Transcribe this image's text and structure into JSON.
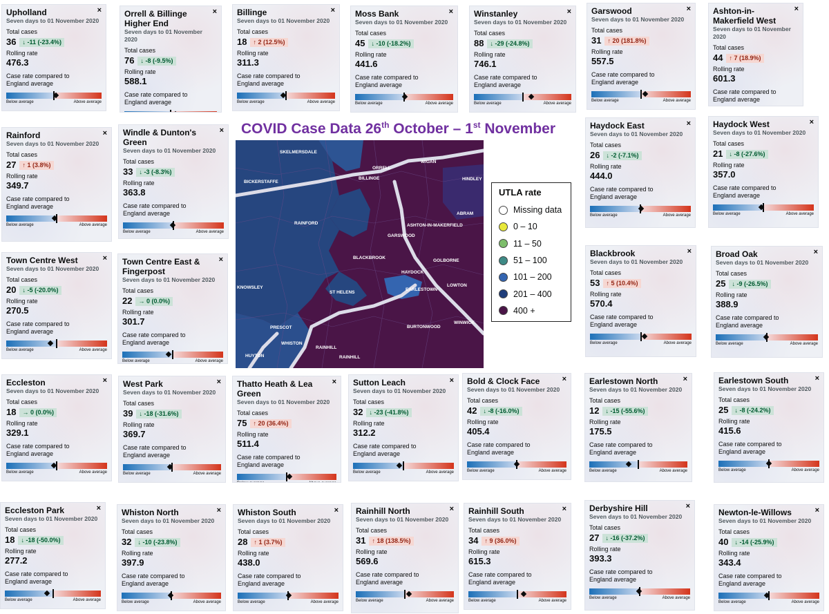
{
  "page_title": {
    "main": "COVID Case Data 26",
    "sup1": "th",
    "mid": " October – 1",
    "sup2": "st",
    "end": " November"
  },
  "common": {
    "period": "Seven days to 01 November 2020",
    "total_cases_label": "Total cases",
    "rolling_rate_label": "Rolling rate",
    "compare_label_1": "Case rate compared to",
    "compare_label_2": "England average",
    "below_label": "Below average",
    "above_label": "Above average",
    "close_glyph": "×"
  },
  "icons": {
    "down": "arrow-down-icon",
    "up": "arrow-up-icon",
    "zero": "arrow-right-icon",
    "close": "close-icon"
  },
  "colors": {
    "down_bg": "#cce2d8",
    "up_bg": "#f6d7d2",
    "title": "#7030a0",
    "map_dark": "#4a1547",
    "map_blue": "#26467f"
  },
  "cards": [
    {
      "name": "Upholland",
      "cases": "36",
      "dir": "down",
      "change": "-11 (-23.4%)",
      "rate": "476.3",
      "level": 0.52
    },
    {
      "name": "Orrell & Billinge Higher End",
      "cases": "76",
      "dir": "down",
      "change": "-8 (-9.5%)",
      "rate": "588.1",
      "level": 0.55
    },
    {
      "name": "Billinge",
      "cases": "18",
      "dir": "up",
      "change": "2 (12.5%)",
      "rate": "311.3",
      "level": 0.47
    },
    {
      "name": "Moss Bank",
      "cases": "45",
      "dir": "down",
      "change": "-10 (-18.2%)",
      "rate": "441.6",
      "level": 0.51
    },
    {
      "name": "Winstanley",
      "cases": "88",
      "dir": "down",
      "change": "-29 (-24.8%)",
      "rate": "746.1",
      "level": 0.59
    },
    {
      "name": "Garswood",
      "cases": "31",
      "dir": "up",
      "change": "20 (181.8%)",
      "rate": "557.5",
      "level": 0.54
    },
    {
      "name": "Ashton-in-Makerfield West",
      "cases": "44",
      "dir": "up",
      "change": "7 (18.9%)",
      "rate": "601.3",
      "level": 0.55
    },
    {
      "name": "Rainford",
      "cases": "27",
      "dir": "up",
      "change": "1 (3.8%)",
      "rate": "349.7",
      "level": 0.48
    },
    {
      "name": "Windle & Dunton's Green",
      "cases": "33",
      "dir": "down",
      "change": "-3 (-8.3%)",
      "rate": "363.8",
      "level": 0.49
    },
    {
      "name": "Haydock East",
      "cases": "26",
      "dir": "down",
      "change": "-2 (-7.1%)",
      "rate": "444.0",
      "level": 0.51
    },
    {
      "name": "Haydock West",
      "cases": "21",
      "dir": "down",
      "change": "-8 (-27.6%)",
      "rate": "357.0",
      "level": 0.48
    },
    {
      "name": "Town Centre West",
      "cases": "20",
      "dir": "down",
      "change": "-5 (-20.0%)",
      "rate": "270.5",
      "level": 0.44
    },
    {
      "name": "Town Centre East & Fingerpost",
      "cases": "22",
      "dir": "zero",
      "change": "0 (0.0%)",
      "rate": "301.7",
      "level": 0.46
    },
    {
      "name": "Blackbrook",
      "cases": "53",
      "dir": "up",
      "change": "5 (10.4%)",
      "rate": "570.4",
      "level": 0.54
    },
    {
      "name": "Broad Oak",
      "cases": "25",
      "dir": "down",
      "change": "-9 (-26.5%)",
      "rate": "388.9",
      "level": 0.49
    },
    {
      "name": "Eccleston",
      "cases": "18",
      "dir": "zero",
      "change": "0 (0.0%)",
      "rate": "329.1",
      "level": 0.47
    },
    {
      "name": "West Park",
      "cases": "39",
      "dir": "down",
      "change": "-18 (-31.6%)",
      "rate": "369.7",
      "level": 0.48
    },
    {
      "name": "Thatto Heath & Lea Green",
      "cases": "75",
      "dir": "up",
      "change": "20 (36.4%)",
      "rate": "511.4",
      "level": 0.53
    },
    {
      "name": "Sutton Leach",
      "cases": "32",
      "dir": "down",
      "change": "-23 (-41.8%)",
      "rate": "312.2",
      "level": 0.46
    },
    {
      "name": "Bold & Clock Face",
      "cases": "42",
      "dir": "down",
      "change": "-8 (-16.0%)",
      "rate": "405.4",
      "level": 0.5
    },
    {
      "name": "Earlestown North",
      "cases": "12",
      "dir": "down",
      "change": "-15 (-55.6%)",
      "rate": "175.5",
      "level": 0.4
    },
    {
      "name": "Earlestown South",
      "cases": "25",
      "dir": "down",
      "change": "-8 (-24.2%)",
      "rate": "415.6",
      "level": 0.5
    },
    {
      "name": "Eccleston Park",
      "cases": "18",
      "dir": "down",
      "change": "-18 (-50.0%)",
      "rate": "277.2",
      "level": 0.44
    },
    {
      "name": "Whiston North",
      "cases": "32",
      "dir": "down",
      "change": "-10 (-23.8%)",
      "rate": "397.9",
      "level": 0.49
    },
    {
      "name": "Whiston South",
      "cases": "28",
      "dir": "up",
      "change": "1 (3.7%)",
      "rate": "438.0",
      "level": 0.51
    },
    {
      "name": "Rainhill North",
      "cases": "31",
      "dir": "up",
      "change": "18 (138.5%)",
      "rate": "569.6",
      "level": 0.54
    },
    {
      "name": "Rainhill South",
      "cases": "34",
      "dir": "up",
      "change": "9 (36.0%)",
      "rate": "615.3",
      "level": 0.56
    },
    {
      "name": "Derbyshire Hill",
      "cases": "27",
      "dir": "down",
      "change": "-16 (-37.2%)",
      "rate": "393.3",
      "level": 0.49
    },
    {
      "name": "Newton-le-Willows",
      "cases": "40",
      "dir": "down",
      "change": "-14 (-25.9%)",
      "rate": "343.4",
      "level": 0.48
    }
  ],
  "map": {
    "places": [
      "SKELMERSDALE",
      "WIGAN",
      "HINDLEY",
      "ORRELL",
      "BILLINGE",
      "ABRAM",
      "RAINFORD",
      "ASHTON-IN-MAKERFIELD",
      "GOLBORNE",
      "GARSWOOD",
      "HAYDOCK",
      "ST HELENS",
      "EARLESTOWN",
      "PRESCOT",
      "WHISTON",
      "HUYTON",
      "BURTONWOOD",
      "WINWICK",
      "RAINHILL",
      "KNOWSLEY",
      "BICKERSTAFFE",
      "RAINHILL",
      "LOWTON",
      "BLACKBROOK"
    ],
    "legend": {
      "title": "UTLA rate",
      "items": [
        {
          "label": "Missing data",
          "color": "#ffffff"
        },
        {
          "label": "0 – 10",
          "color": "#e8e83a"
        },
        {
          "label": "11 – 50",
          "color": "#7dbd6b"
        },
        {
          "label": "51 – 100",
          "color": "#3e8a86"
        },
        {
          "label": "101 – 200",
          "color": "#3465b0"
        },
        {
          "label": "201 – 400",
          "color": "#1f3d7a"
        },
        {
          "label": "400 +",
          "color": "#4a1547"
        }
      ]
    }
  }
}
